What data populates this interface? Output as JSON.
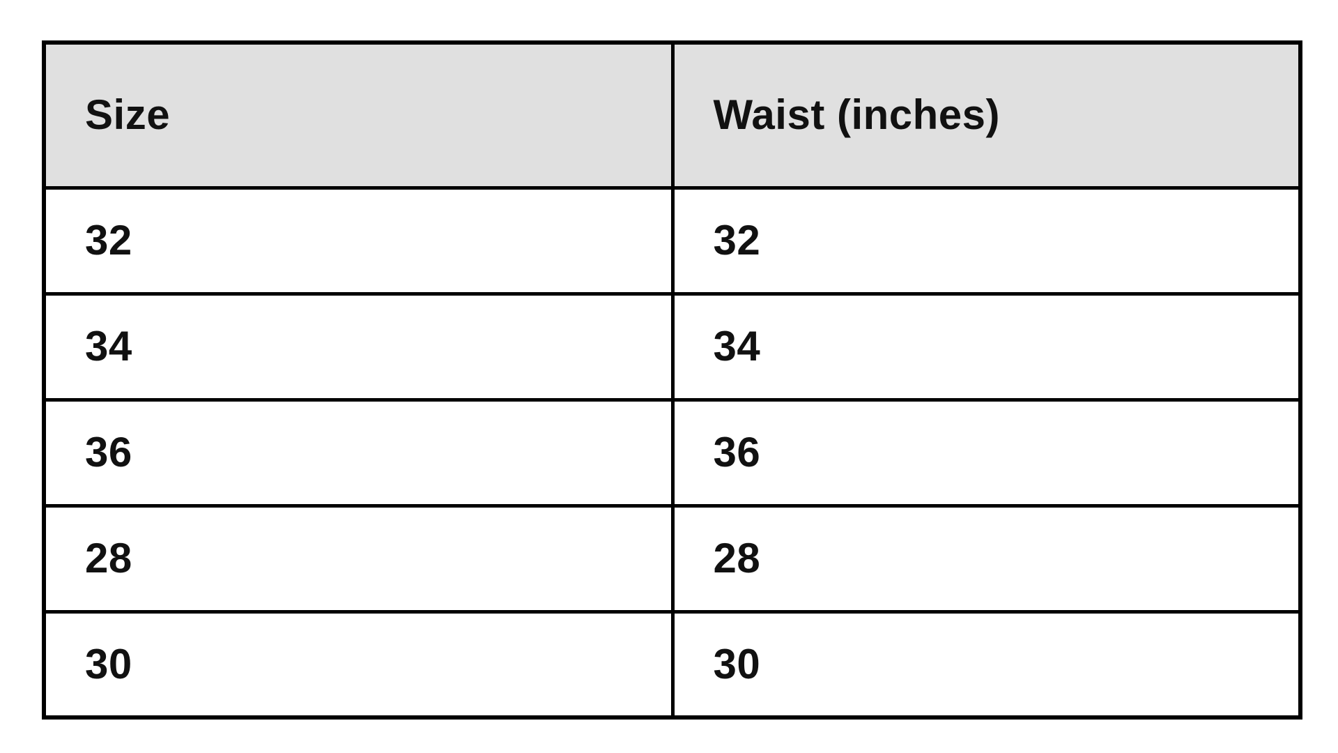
{
  "table": {
    "headers": [
      "Size",
      "Waist (inches)"
    ],
    "rows": [
      [
        "32",
        "32"
      ],
      [
        "34",
        "34"
      ],
      [
        "36",
        "36"
      ],
      [
        "28",
        "28"
      ],
      [
        "30",
        "30"
      ]
    ]
  },
  "colors": {
    "header_bg": "#e0e0e0",
    "border": "#000000",
    "text": "#111111",
    "page_bg": "#ffffff"
  },
  "chart_data": {
    "type": "table",
    "title": "",
    "columns": [
      "Size",
      "Waist (inches)"
    ],
    "rows": [
      [
        "32",
        "32"
      ],
      [
        "34",
        "34"
      ],
      [
        "36",
        "36"
      ],
      [
        "28",
        "28"
      ],
      [
        "30",
        "30"
      ]
    ],
    "layout_hints": {
      "header_background": "#e0e0e0",
      "grid": "on",
      "border_style": "thick-black",
      "text_style": "bold-left-aligned"
    }
  }
}
